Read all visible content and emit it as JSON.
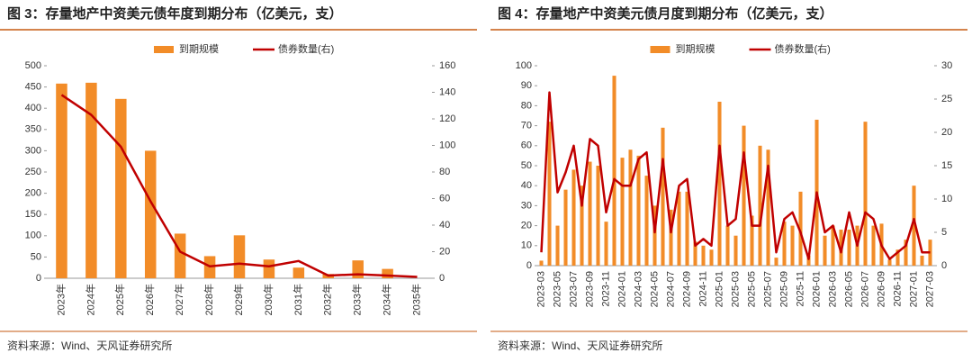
{
  "chart_data": [
    {
      "type": "bar",
      "title": "图 3：存量地产中资美元债年度到期分布（亿美元，支）",
      "source": "资料来源：Wind、天风证券研究所",
      "categories": [
        "2023年",
        "2024年",
        "2025年",
        "2026年",
        "2027年",
        "2028年",
        "2029年",
        "2030年",
        "2031年",
        "2032年",
        "2033年",
        "2034年",
        "2035年"
      ],
      "series": [
        {
          "name": "到期规模",
          "color": "#f28c28",
          "type": "bar",
          "values": [
            458,
            460,
            422,
            300,
            105,
            52,
            101,
            44,
            25,
            10,
            42,
            22,
            0
          ]
        },
        {
          "name": "债券数量(右)",
          "color": "#c00000",
          "type": "line",
          "axis": "y2",
          "values": [
            138,
            123,
            99,
            58,
            20,
            9,
            11,
            9,
            13,
            2,
            3,
            2,
            1
          ]
        }
      ],
      "ylim": [
        0,
        500
      ],
      "yticks": [
        0,
        50,
        100,
        150,
        200,
        250,
        300,
        350,
        400,
        450,
        500
      ],
      "y2lim": [
        0,
        160
      ],
      "y2ticks": [
        0,
        20,
        40,
        60,
        80,
        100,
        120,
        140,
        160
      ],
      "legend": "top",
      "grid": false
    },
    {
      "type": "bar",
      "title": "图 4：存量地产中资美元债月度到期分布（亿美元，支）",
      "source": "资料来源：Wind、天风证券研究所",
      "categories": [
        "2023-03",
        null,
        "2023-05",
        null,
        "2023-07",
        null,
        "2023-09",
        null,
        "2023-11",
        null,
        "2024-01",
        null,
        "2024-03",
        null,
        "2024-05",
        null,
        "2024-07",
        null,
        "2024-09",
        null,
        "2024-11",
        null,
        "2025-01",
        null,
        "2025-03",
        null,
        "2025-05",
        null,
        "2025-07",
        null,
        "2025-09",
        null,
        "2025-11",
        null,
        "2026-01",
        null,
        "2026-03",
        null,
        "2026-05",
        null,
        "2026-07",
        null,
        "2026-09",
        null,
        "2026-11",
        null,
        "2027-01",
        null,
        "2027-03"
      ],
      "series": [
        {
          "name": "到期规模",
          "color": "#f28c28",
          "type": "bar",
          "values": [
            2.5,
            72,
            20,
            38,
            48,
            40,
            52,
            50,
            22,
            95,
            54,
            58,
            55,
            45,
            30,
            69,
            28,
            37,
            37,
            12,
            10,
            8,
            82,
            20,
            15,
            70,
            25,
            60,
            58,
            4,
            22,
            20,
            37,
            5,
            73,
            15,
            20,
            18,
            18,
            20,
            72,
            20,
            21,
            3,
            8,
            13,
            40,
            5,
            13
          ]
        },
        {
          "name": "债券数量(右)",
          "color": "#c00000",
          "type": "line",
          "axis": "y2",
          "values": [
            2,
            26,
            11,
            14,
            18,
            9,
            19,
            18,
            8,
            13,
            12,
            12,
            16,
            17,
            5,
            16,
            5,
            12,
            13,
            3,
            4,
            3,
            18,
            6,
            7,
            17,
            6,
            6,
            15,
            2,
            7,
            8,
            5,
            1,
            11,
            5,
            6,
            2,
            8,
            3,
            8,
            7,
            3,
            1,
            2,
            3,
            7,
            2,
            2
          ]
        }
      ],
      "ylim": [
        0,
        100
      ],
      "yticks": [
        0,
        10,
        20,
        30,
        40,
        50,
        60,
        70,
        80,
        90,
        100
      ],
      "y2lim": [
        0,
        30
      ],
      "y2ticks": [
        0,
        5,
        10,
        15,
        20,
        25,
        30
      ],
      "legend": "top",
      "grid": false
    }
  ]
}
